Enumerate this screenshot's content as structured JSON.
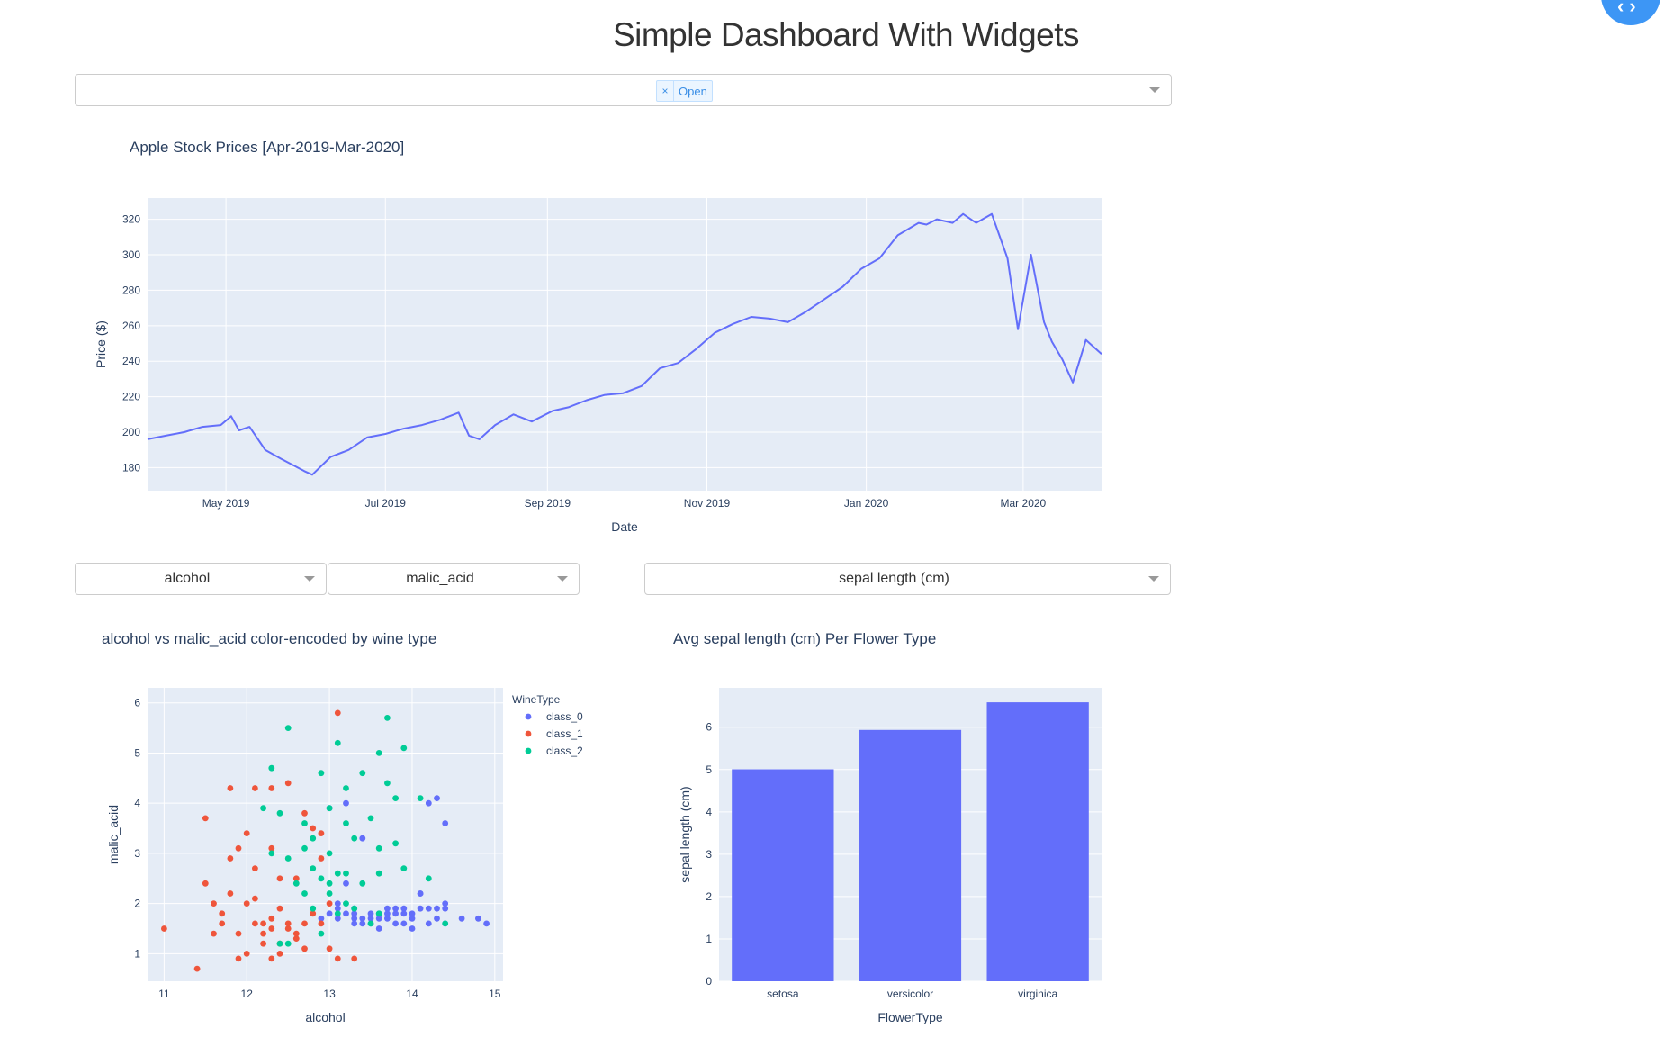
{
  "page": {
    "title": "Simple Dashboard With Widgets"
  },
  "fab": {
    "icon": "code-icon",
    "glyph": "‹›"
  },
  "stock_selector": {
    "selected_tag": "Open",
    "remove_glyph": "×"
  },
  "wine_x_dropdown": {
    "value": "alcohol"
  },
  "wine_y_dropdown": {
    "value": "malic_acid"
  },
  "iris_dropdown": {
    "value": "sepal length (cm)"
  },
  "chart_data": [
    {
      "id": "stock",
      "type": "line",
      "title": "Apple Stock Prices [Apr-2019-Mar-2020]",
      "xlabel": "Date",
      "ylabel": "Price ($)",
      "x_ticks": [
        "May 2019",
        "Jul 2019",
        "Sep 2019",
        "Nov 2019",
        "Jan 2020",
        "Mar 2020"
      ],
      "x_tick_dates": [
        "2019-05-01",
        "2019-07-01",
        "2019-09-01",
        "2019-11-01",
        "2020-01-01",
        "2020-03-01"
      ],
      "xlim": [
        "2019-04-01",
        "2020-03-31"
      ],
      "y_ticks": [
        180,
        200,
        220,
        240,
        260,
        280,
        300,
        320
      ],
      "ylim": [
        167,
        332
      ],
      "grid": true,
      "color": "#636efa",
      "series": [
        {
          "x": [
            "2019-04-01",
            "2019-04-08",
            "2019-04-15",
            "2019-04-22",
            "2019-04-29",
            "2019-05-03",
            "2019-05-06",
            "2019-05-10",
            "2019-05-16",
            "2019-05-22",
            "2019-05-31",
            "2019-06-03",
            "2019-06-10",
            "2019-06-17",
            "2019-06-24",
            "2019-07-01",
            "2019-07-08",
            "2019-07-15",
            "2019-07-22",
            "2019-07-29",
            "2019-08-02",
            "2019-08-06",
            "2019-08-12",
            "2019-08-19",
            "2019-08-26",
            "2019-09-03",
            "2019-09-09",
            "2019-09-16",
            "2019-09-23",
            "2019-09-30",
            "2019-10-07",
            "2019-10-14",
            "2019-10-21",
            "2019-10-28",
            "2019-11-04",
            "2019-11-11",
            "2019-11-18",
            "2019-11-25",
            "2019-12-02",
            "2019-12-09",
            "2019-12-16",
            "2019-12-23",
            "2019-12-30",
            "2020-01-06",
            "2020-01-13",
            "2020-01-21",
            "2020-01-24",
            "2020-01-28",
            "2020-02-03",
            "2020-02-07",
            "2020-02-12",
            "2020-02-18",
            "2020-02-24",
            "2020-02-28",
            "2020-03-04",
            "2020-03-09",
            "2020-03-12",
            "2020-03-16",
            "2020-03-20",
            "2020-03-25",
            "2020-03-31"
          ],
          "y": [
            196,
            198,
            200,
            203,
            204,
            209,
            201,
            203,
            190,
            185,
            178,
            176,
            186,
            190,
            197,
            199,
            202,
            204,
            207,
            211,
            198,
            196,
            204,
            210,
            206,
            212,
            214,
            218,
            221,
            222,
            226,
            236,
            239,
            247,
            256,
            261,
            265,
            264,
            262,
            268,
            275,
            282,
            292,
            298,
            311,
            318,
            317,
            320,
            318,
            323,
            318,
            323,
            298,
            258,
            300,
            262,
            251,
            241,
            228,
            252,
            244
          ]
        }
      ]
    },
    {
      "id": "wine",
      "type": "scatter",
      "title": "alcohol vs malic_acid color-encoded by wine type",
      "xlabel": "alcohol",
      "ylabel": "malic_acid",
      "x_ticks": [
        11,
        12,
        13,
        14,
        15
      ],
      "y_ticks": [
        1,
        2,
        3,
        4,
        5,
        6
      ],
      "xlim": [
        10.8,
        15.1
      ],
      "ylim": [
        0.45,
        6.3
      ],
      "grid": true,
      "legend_title": "WineType",
      "legend_position": "top-right",
      "series": [
        {
          "name": "class_0",
          "color": "#636efa",
          "points": [
            [
              13.2,
              1.8
            ],
            [
              13.4,
              1.7
            ],
            [
              14.2,
              1.9
            ],
            [
              13.9,
              1.8
            ],
            [
              14.1,
              2.2
            ],
            [
              13.7,
              1.7
            ],
            [
              13.5,
              1.8
            ],
            [
              14.3,
              1.9
            ],
            [
              14.4,
              1.6
            ],
            [
              13.1,
              1.7
            ],
            [
              13.3,
              1.6
            ],
            [
              13.8,
              1.6
            ],
            [
              14.0,
              1.7
            ],
            [
              13.6,
              1.8
            ],
            [
              13.0,
              1.8
            ],
            [
              12.9,
              1.7
            ],
            [
              13.5,
              1.6
            ],
            [
              14.2,
              4.0
            ],
            [
              14.4,
              3.6
            ],
            [
              13.2,
              4.0
            ],
            [
              13.0,
              3.9
            ],
            [
              13.4,
              3.3
            ],
            [
              13.1,
              2.0
            ],
            [
              13.3,
              1.9
            ],
            [
              14.8,
              1.7
            ],
            [
              14.9,
              1.6
            ],
            [
              13.6,
              1.5
            ],
            [
              14.1,
              1.9
            ],
            [
              13.9,
              1.6
            ],
            [
              13.7,
              1.9
            ],
            [
              14.4,
              1.9
            ],
            [
              13.8,
              1.8
            ],
            [
              14.0,
              1.5
            ],
            [
              13.2,
              2.4
            ],
            [
              13.9,
              1.9
            ],
            [
              13.6,
              1.7
            ],
            [
              14.1,
              2.2
            ],
            [
              13.3,
              1.8
            ],
            [
              14.3,
              1.7
            ],
            [
              14.2,
              1.6
            ],
            [
              13.8,
              1.9
            ],
            [
              13.1,
              1.9
            ],
            [
              14.0,
              1.8
            ],
            [
              13.7,
              1.8
            ],
            [
              14.4,
              2.0
            ],
            [
              14.3,
              4.1
            ],
            [
              13.4,
              1.6
            ],
            [
              13.5,
              1.7
            ],
            [
              13.3,
              1.7
            ],
            [
              14.6,
              1.7
            ]
          ]
        },
        {
          "name": "class_1",
          "color": "#ef553b",
          "points": [
            [
              11.0,
              1.5
            ],
            [
              11.4,
              0.7
            ],
            [
              11.5,
              3.7
            ],
            [
              12.3,
              4.3
            ],
            [
              11.8,
              4.3
            ],
            [
              12.1,
              4.3
            ],
            [
              12.5,
              4.4
            ],
            [
              13.1,
              5.8
            ],
            [
              11.5,
              2.4
            ],
            [
              11.6,
              2.0
            ],
            [
              11.7,
              1.8
            ],
            [
              11.8,
              2.9
            ],
            [
              11.9,
              3.1
            ],
            [
              12.0,
              3.4
            ],
            [
              12.1,
              2.1
            ],
            [
              12.2,
              1.6
            ],
            [
              12.3,
              1.7
            ],
            [
              12.4,
              1.2
            ],
            [
              12.5,
              1.5
            ],
            [
              12.6,
              1.3
            ],
            [
              12.7,
              1.1
            ],
            [
              12.8,
              1.8
            ],
            [
              12.9,
              1.6
            ],
            [
              13.0,
              2.0
            ],
            [
              13.1,
              0.9
            ],
            [
              13.3,
              0.9
            ],
            [
              12.2,
              1.4
            ],
            [
              12.4,
              1.0
            ],
            [
              12.0,
              1.0
            ],
            [
              11.9,
              0.9
            ],
            [
              12.3,
              1.5
            ],
            [
              12.6,
              2.5
            ],
            [
              12.8,
              3.5
            ],
            [
              12.9,
              3.4
            ],
            [
              12.7,
              3.8
            ],
            [
              12.3,
              3.1
            ],
            [
              12.1,
              2.7
            ],
            [
              11.7,
              1.6
            ],
            [
              11.6,
              1.4
            ],
            [
              12.0,
              2.0
            ],
            [
              12.5,
              1.6
            ],
            [
              12.4,
              1.9
            ],
            [
              11.8,
              2.2
            ],
            [
              12.2,
              1.2
            ],
            [
              12.6,
              1.4
            ],
            [
              11.9,
              1.4
            ],
            [
              12.7,
              1.6
            ],
            [
              12.9,
              2.9
            ],
            [
              12.4,
              2.5
            ],
            [
              12.3,
              0.9
            ],
            [
              12.1,
              1.6
            ],
            [
              13.0,
              1.1
            ]
          ]
        },
        {
          "name": "class_2",
          "color": "#00cc96",
          "points": [
            [
              12.5,
              5.5
            ],
            [
              13.1,
              5.2
            ],
            [
              13.7,
              5.7
            ],
            [
              12.9,
              4.6
            ],
            [
              13.4,
              4.6
            ],
            [
              13.6,
              5.0
            ],
            [
              13.9,
              5.1
            ],
            [
              12.3,
              4.7
            ],
            [
              13.2,
              4.3
            ],
            [
              13.7,
              4.4
            ],
            [
              12.2,
              3.9
            ],
            [
              12.4,
              3.8
            ],
            [
              13.0,
              3.9
            ],
            [
              12.7,
              3.6
            ],
            [
              13.2,
              3.6
            ],
            [
              13.5,
              3.7
            ],
            [
              13.8,
              4.1
            ],
            [
              14.1,
              4.1
            ],
            [
              12.8,
              3.3
            ],
            [
              13.3,
              3.3
            ],
            [
              13.6,
              3.1
            ],
            [
              13.8,
              3.2
            ],
            [
              12.7,
              3.1
            ],
            [
              13.0,
              3.0
            ],
            [
              12.3,
              3.0
            ],
            [
              12.5,
              2.9
            ],
            [
              12.8,
              2.7
            ],
            [
              13.1,
              2.6
            ],
            [
              13.4,
              2.4
            ],
            [
              13.6,
              2.6
            ],
            [
              13.9,
              2.7
            ],
            [
              14.2,
              2.5
            ],
            [
              12.6,
              2.4
            ],
            [
              12.9,
              2.5
            ],
            [
              13.2,
              2.6
            ],
            [
              12.7,
              2.2
            ],
            [
              13.0,
              2.2
            ],
            [
              13.1,
              1.8
            ],
            [
              13.3,
              1.9
            ],
            [
              13.6,
              1.8
            ],
            [
              14.4,
              1.6
            ],
            [
              12.4,
              1.2
            ],
            [
              12.5,
              1.2
            ],
            [
              12.9,
              1.4
            ],
            [
              13.5,
              1.6
            ],
            [
              13.2,
              2.0
            ],
            [
              12.8,
              1.9
            ],
            [
              13.0,
              2.4
            ]
          ]
        }
      ]
    },
    {
      "id": "iris",
      "type": "bar",
      "title": "Avg sepal length (cm) Per Flower Type",
      "xlabel": "FlowerType",
      "ylabel": "sepal length (cm)",
      "categories": [
        "setosa",
        "versicolor",
        "virginica"
      ],
      "values": [
        5.006,
        5.936,
        6.588
      ],
      "y_ticks": [
        0,
        1,
        2,
        3,
        4,
        5,
        6
      ],
      "ylim": [
        0,
        6.93
      ],
      "grid": true,
      "color": "#636efa"
    }
  ]
}
